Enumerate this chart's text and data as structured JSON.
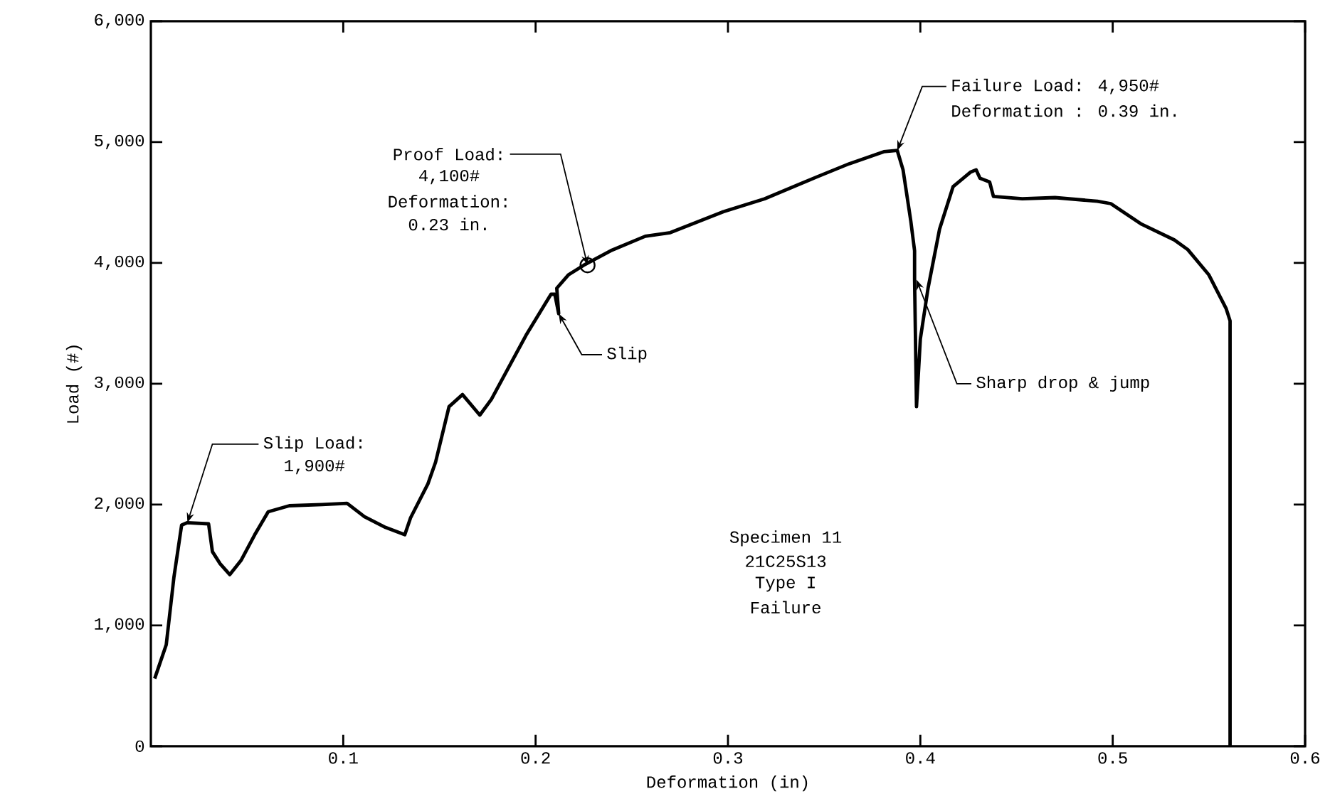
{
  "chart_data": {
    "type": "line",
    "xlabel": "Deformation  (in)",
    "ylabel": "Load  (#)",
    "xlim": [
      0,
      0.6
    ],
    "ylim": [
      0,
      6000
    ],
    "xticks": [
      0.1,
      0.2,
      0.3,
      0.4,
      0.5,
      0.6
    ],
    "yticks": [
      0,
      {
        "value": 1000,
        "label": "1,000"
      },
      {
        "value": 2000,
        "label": "2,000"
      },
      {
        "value": 3000,
        "label": "3,000"
      },
      {
        "value": 4000,
        "label": "4,000"
      },
      {
        "value": 5000,
        "label": "5,000"
      },
      {
        "value": 6000,
        "label": "6,000"
      }
    ],
    "series": [
      {
        "color": "#000000",
        "x": [
          0.002,
          0.008,
          0.012,
          0.016,
          0.019,
          0.03,
          0.032,
          0.036,
          0.041,
          0.047,
          0.054,
          0.061,
          0.072,
          0.089,
          0.102,
          0.111,
          0.122,
          0.132,
          0.135,
          0.144,
          0.148,
          0.155,
          0.162,
          0.171,
          0.177,
          0.195,
          0.208,
          0.21,
          0.212,
          0.211,
          0.217,
          0.225,
          0.239,
          0.257,
          0.27,
          0.297,
          0.319,
          0.346,
          0.363,
          0.381,
          0.388,
          0.391,
          0.395,
          0.397,
          0.397,
          0.398,
          0.4,
          0.404,
          0.41,
          0.417,
          0.426,
          0.429,
          0.431,
          0.436,
          0.438,
          0.453,
          0.47,
          0.492,
          0.499,
          0.515,
          0.532,
          0.539,
          0.55,
          0.559,
          0.561,
          0.561
        ],
        "values": [
          560,
          840,
          1400,
          1830,
          1850,
          1840,
          1610,
          1510,
          1420,
          1540,
          1750,
          1940,
          1990,
          2000,
          2010,
          1900,
          1810,
          1750,
          1890,
          2170,
          2350,
          2810,
          2910,
          2740,
          2870,
          3400,
          3740,
          3740,
          3580,
          3790,
          3900,
          3980,
          4100,
          4220,
          4250,
          4420,
          4530,
          4710,
          4820,
          4920,
          4930,
          4770,
          4350,
          4100,
          3860,
          2810,
          3370,
          3790,
          4280,
          4630,
          4750,
          4770,
          4700,
          4670,
          4550,
          4530,
          4540,
          4510,
          4490,
          4320,
          4190,
          4110,
          3900,
          3620,
          3520,
          0
        ]
      }
    ],
    "annotations": [
      {
        "text": "Slip Load:",
        "x": 0.019,
        "y": 1850
      },
      "1,900#",
      {
        "text": "Proof Load:",
        "x": 0.227,
        "y": 3980
      },
      "4,100#",
      "Deformation:",
      "0.23 in.",
      {
        "text": "Slip",
        "x": 0.212,
        "y": 3580
      },
      {
        "text": "Failure Load: 4,950#",
        "x": 0.388,
        "y": 4930
      },
      "Deformation : 0.39 in.",
      {
        "text": "Sharp drop & jump",
        "x": 0.398,
        "y": 3860
      },
      "Specimen 11",
      "21C25S13",
      "Type I",
      "Failure"
    ]
  }
}
